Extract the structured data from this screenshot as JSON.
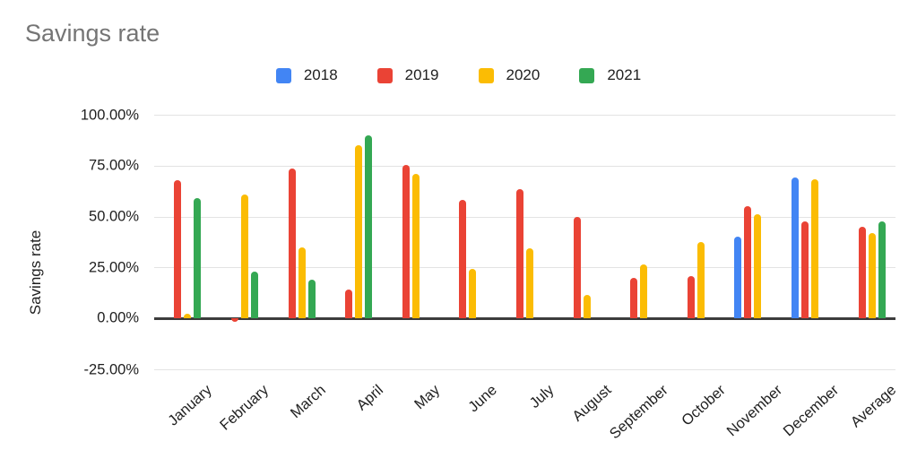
{
  "chart_data": {
    "type": "bar",
    "title": "Savings rate",
    "ylabel": "Savings rate",
    "xlabel": "",
    "categories": [
      "January",
      "February",
      "March",
      "April",
      "May",
      "June",
      "July",
      "August",
      "September",
      "October",
      "November",
      "December",
      "Average"
    ],
    "series": [
      {
        "name": "2018",
        "color": "#4285F4",
        "values": [
          null,
          null,
          null,
          null,
          null,
          null,
          null,
          null,
          null,
          null,
          40,
          69,
          null
        ]
      },
      {
        "name": "2019",
        "color": "#EA4335",
        "values": [
          68,
          -1.5,
          73.5,
          14,
          75.5,
          58,
          63.5,
          50,
          20,
          21,
          55,
          47.5,
          45
        ]
      },
      {
        "name": "2020",
        "color": "#FBBC04",
        "values": [
          2.5,
          61,
          35,
          85,
          71,
          24.5,
          34.5,
          11.5,
          26.5,
          37.5,
          51,
          68.5,
          42
        ]
      },
      {
        "name": "2021",
        "color": "#34A853",
        "values": [
          59,
          23,
          19,
          90,
          null,
          null,
          null,
          null,
          null,
          null,
          null,
          null,
          47.5
        ]
      }
    ],
    "y_ticks": [
      {
        "label": "100.00%",
        "value": 100
      },
      {
        "label": "75.00%",
        "value": 75
      },
      {
        "label": "50.00%",
        "value": 50
      },
      {
        "label": "25.00%",
        "value": 25
      },
      {
        "label": "0.00%",
        "value": 0
      },
      {
        "label": "-25.00%",
        "value": -25
      }
    ],
    "ylim": [
      -25,
      100
    ],
    "grid": true,
    "legend_position": "top",
    "colors": {
      "title_text": "#757575",
      "axis_text": "#1f1f1f",
      "gridline": "#e3e3e3",
      "zero_line": "#3c3c3c",
      "background": "#ffffff"
    }
  }
}
